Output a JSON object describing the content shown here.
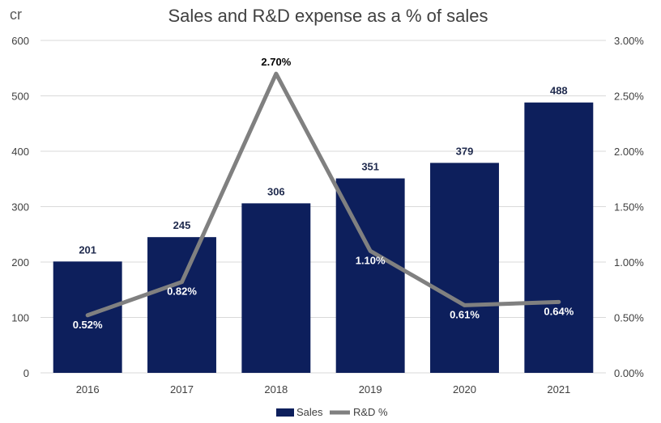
{
  "chart_data": {
    "type": "bar",
    "title": "Sales and R&D expense as a % of sales",
    "y_unit_label": "cr",
    "categories": [
      "2016",
      "2017",
      "2018",
      "2019",
      "2020",
      "2021"
    ],
    "series": [
      {
        "name": "Sales",
        "kind": "bar",
        "axis": "left",
        "values": [
          201,
          245,
          306,
          351,
          379,
          488
        ],
        "labels": [
          "201",
          "245",
          "306",
          "351",
          "379",
          "488"
        ]
      },
      {
        "name": "R&D %",
        "kind": "line",
        "axis": "right",
        "values": [
          0.52,
          0.82,
          2.7,
          1.1,
          0.61,
          0.64
        ],
        "labels": [
          "0.52%",
          "0.82%",
          "2.70%",
          "1.10%",
          "0.61%",
          "0.64%"
        ]
      }
    ],
    "y_left": {
      "min": 0,
      "max": 600,
      "ticks": [
        "0",
        "100",
        "200",
        "300",
        "400",
        "500",
        "600"
      ]
    },
    "y_right": {
      "min": 0,
      "max": 3,
      "ticks": [
        "0.00%",
        "0.50%",
        "1.00%",
        "1.50%",
        "2.00%",
        "2.50%",
        "3.00%"
      ]
    },
    "grid": true,
    "legend_position": "bottom",
    "colors": {
      "bar": "#0d1f5c",
      "line": "#808080",
      "grid": "#d9d9d9"
    }
  }
}
